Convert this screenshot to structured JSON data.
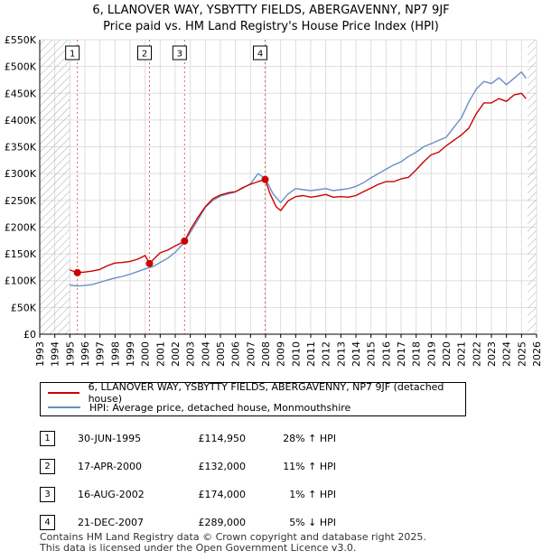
{
  "title_line1": "6, LLANOVER WAY, YSBYTTY FIELDS, ABERGAVENNY, NP7 9JF",
  "title_line2": "Price paid vs. HM Land Registry's House Price Index (HPI)",
  "colors": {
    "property": "#cc0000",
    "hpi": "#6b8fc4",
    "marker": "#cc0000",
    "vline": "#e06060",
    "hatch": "#999999",
    "grid": "#dddddd"
  },
  "legend": {
    "property_label": "6, LLANOVER WAY, YSBYTTY FIELDS, ABERGAVENNY, NP7 9JF (detached house)",
    "hpi_label": "HPI: Average price, detached house, Monmouthshire"
  },
  "sales": [
    {
      "num": "1",
      "date": "30-JUN-1995",
      "price": "£114,950",
      "hpi": "28% ↑ HPI"
    },
    {
      "num": "2",
      "date": "17-APR-2000",
      "price": "£132,000",
      "hpi": "11% ↑ HPI"
    },
    {
      "num": "3",
      "date": "16-AUG-2002",
      "price": "£174,000",
      "hpi": "1% ↑ HPI"
    },
    {
      "num": "4",
      "date": "21-DEC-2007",
      "price": "£289,000",
      "hpi": "5% ↓ HPI"
    }
  ],
  "footer": {
    "line1": "Contains HM Land Registry data © Crown copyright and database right 2025.",
    "line2": "This data is licensed under the Open Government Licence v3.0."
  },
  "chart_data": {
    "type": "line",
    "title": "Price paid vs. HM Land Registry's House Price Index (HPI)",
    "xlabel": "",
    "ylabel": "",
    "xlim": [
      1993,
      2026
    ],
    "ylim": [
      0,
      550000
    ],
    "x_ticks": [
      1993,
      1994,
      1995,
      1996,
      1997,
      1998,
      1999,
      2000,
      2001,
      2002,
      2003,
      2004,
      2005,
      2006,
      2007,
      2008,
      2009,
      2010,
      2011,
      2012,
      2013,
      2014,
      2015,
      2016,
      2017,
      2018,
      2019,
      2020,
      2021,
      2022,
      2023,
      2024,
      2025,
      2026
    ],
    "y_ticks": [
      {
        "value": 0,
        "label": "£0"
      },
      {
        "value": 50000,
        "label": "£50K"
      },
      {
        "value": 100000,
        "label": "£100K"
      },
      {
        "value": 150000,
        "label": "£150K"
      },
      {
        "value": 200000,
        "label": "£200K"
      },
      {
        "value": 250000,
        "label": "£250K"
      },
      {
        "value": 300000,
        "label": "£300K"
      },
      {
        "value": 350000,
        "label": "£350K"
      },
      {
        "value": 400000,
        "label": "£400K"
      },
      {
        "value": 450000,
        "label": "£450K"
      },
      {
        "value": 500000,
        "label": "£500K"
      },
      {
        "value": 550000,
        "label": "£550K"
      }
    ],
    "hatched_ranges": [
      [
        1993,
        1995.0
      ],
      [
        2025.4,
        2026
      ]
    ],
    "sale_points": [
      {
        "num": "1",
        "x": 1995.5,
        "y": 114950
      },
      {
        "num": "2",
        "x": 2000.29,
        "y": 132000
      },
      {
        "num": "3",
        "x": 2002.62,
        "y": 174000
      },
      {
        "num": "4",
        "x": 2007.97,
        "y": 289000
      }
    ],
    "series": [
      {
        "name": "6, LLANOVER WAY, YSBYTTY FIELDS, ABERGAVENNY, NP7 9JF (detached house)",
        "x": [
          1995.0,
          1995.5,
          1996.0,
          1996.5,
          1997.0,
          1997.5,
          1998.0,
          1998.5,
          1999.0,
          1999.5,
          2000.0,
          2000.29,
          2000.6,
          2001.0,
          2001.5,
          2002.0,
          2002.5,
          2002.62,
          2003.0,
          2003.5,
          2004.0,
          2004.5,
          2005.0,
          2005.5,
          2006.0,
          2006.5,
          2007.0,
          2007.5,
          2007.97,
          2008.3,
          2008.7,
          2009.0,
          2009.5,
          2010.0,
          2010.5,
          2011.0,
          2011.5,
          2012.0,
          2012.5,
          2013.0,
          2013.5,
          2014.0,
          2014.5,
          2015.0,
          2015.5,
          2016.0,
          2016.5,
          2017.0,
          2017.5,
          2018.0,
          2018.5,
          2019.0,
          2019.5,
          2020.0,
          2020.5,
          2021.0,
          2021.5,
          2022.0,
          2022.5,
          2023.0,
          2023.5,
          2024.0,
          2024.5,
          2025.0,
          2025.3
        ],
        "y": [
          120000,
          114950,
          116000,
          118000,
          121000,
          128000,
          133000,
          134000,
          136000,
          140000,
          147000,
          132000,
          141000,
          152000,
          157000,
          165000,
          172000,
          174000,
          195000,
          218000,
          238000,
          253000,
          260000,
          264000,
          266000,
          274000,
          280000,
          285000,
          289000,
          262000,
          238000,
          231000,
          249000,
          257000,
          259000,
          256000,
          258000,
          261000,
          256000,
          257000,
          256000,
          259000,
          266000,
          273000,
          280000,
          285000,
          285000,
          290000,
          293000,
          307000,
          322000,
          335000,
          340000,
          352000,
          362000,
          372000,
          385000,
          412000,
          432000,
          432000,
          440000,
          435000,
          447000,
          450000,
          440000
        ]
      },
      {
        "name": "HPI: Average price, detached house, Monmouthshire",
        "x": [
          1995.0,
          1995.5,
          1996.0,
          1996.5,
          1997.0,
          1997.5,
          1998.0,
          1998.5,
          1999.0,
          1999.5,
          2000.0,
          2000.5,
          2001.0,
          2001.5,
          2002.0,
          2002.5,
          2003.0,
          2003.5,
          2004.0,
          2004.5,
          2005.0,
          2005.5,
          2006.0,
          2006.5,
          2007.0,
          2007.5,
          2008.0,
          2008.5,
          2009.0,
          2009.5,
          2010.0,
          2010.5,
          2011.0,
          2011.5,
          2012.0,
          2012.5,
          2013.0,
          2013.5,
          2014.0,
          2014.5,
          2015.0,
          2015.5,
          2016.0,
          2016.5,
          2017.0,
          2017.5,
          2018.0,
          2018.5,
          2019.0,
          2019.5,
          2020.0,
          2020.5,
          2021.0,
          2021.5,
          2022.0,
          2022.5,
          2023.0,
          2023.5,
          2024.0,
          2024.5,
          2025.0,
          2025.3
        ],
        "y": [
          92000,
          90000,
          91000,
          93000,
          97000,
          101000,
          105000,
          108000,
          112000,
          117000,
          122000,
          126000,
          134000,
          142000,
          153000,
          168000,
          190000,
          213000,
          237000,
          250000,
          258000,
          262000,
          266000,
          273000,
          281000,
          300000,
          290000,
          262000,
          246000,
          262000,
          272000,
          270000,
          268000,
          270000,
          272000,
          268000,
          270000,
          272000,
          276000,
          283000,
          292000,
          300000,
          308000,
          316000,
          322000,
          332000,
          340000,
          350000,
          356000,
          362000,
          368000,
          386000,
          404000,
          434000,
          458000,
          472000,
          468000,
          479000,
          466000,
          478000,
          490000,
          478000
        ]
      }
    ]
  }
}
